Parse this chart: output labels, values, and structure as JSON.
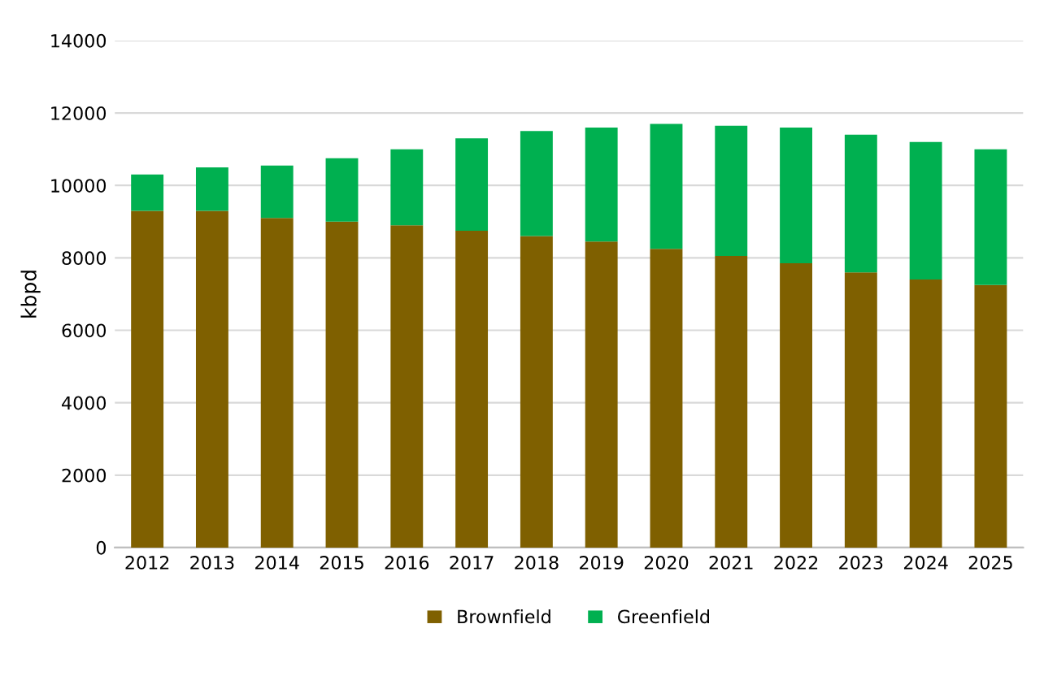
{
  "chart_data": {
    "type": "bar",
    "stacked": true,
    "ylabel": "kbpd",
    "categories": [
      "2012",
      "2013",
      "2014",
      "2015",
      "2016",
      "2017",
      "2018",
      "2019",
      "2020",
      "2021",
      "2022",
      "2023",
      "2024",
      "2025"
    ],
    "series": [
      {
        "name": "Brownfield",
        "color": "#7f6000",
        "values": [
          9300,
          9300,
          9100,
          9000,
          8900,
          8750,
          8600,
          8450,
          8250,
          8050,
          7850,
          7600,
          7400,
          7250
        ]
      },
      {
        "name": "Greenfield",
        "color": "#00b050",
        "values": [
          1000,
          1200,
          1450,
          1750,
          2100,
          2550,
          2900,
          3150,
          3450,
          3600,
          3750,
          3800,
          3800,
          3750
        ]
      }
    ],
    "ylim": [
      0,
      14000
    ],
    "yticks": [
      0,
      2000,
      4000,
      6000,
      8000,
      10000,
      12000,
      14000
    ],
    "grid": "y",
    "legend": "bottom"
  }
}
